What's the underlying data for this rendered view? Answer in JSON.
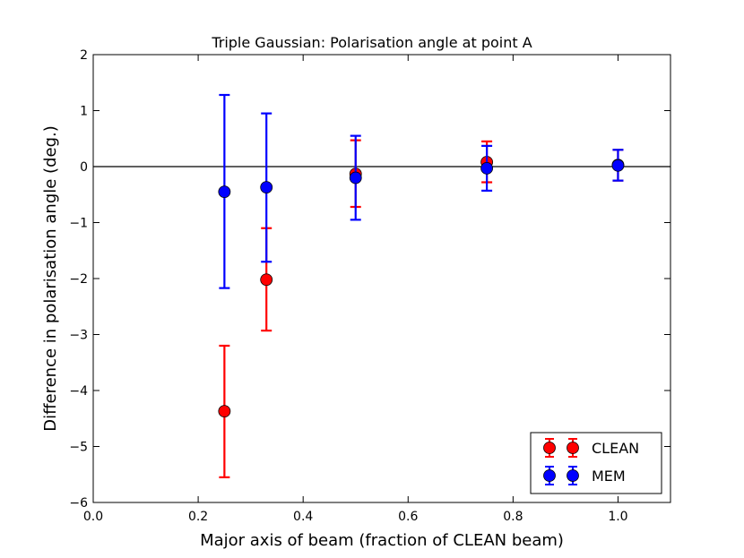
{
  "chart_data": {
    "type": "scatter",
    "title": "Triple Gaussian: Polarisation angle at point A",
    "xlabel": "Major axis of beam (fraction of CLEAN beam)",
    "ylabel": "Difference in polarisation angle (deg.)",
    "xlim": [
      0.0,
      1.1
    ],
    "ylim": [
      -6,
      2
    ],
    "xticks": [
      0.0,
      0.2,
      0.4,
      0.6,
      0.8,
      1.0
    ],
    "xtick_labels": [
      "0.0",
      "0.2",
      "0.4",
      "0.6",
      "0.8",
      "1.0"
    ],
    "yticks": [
      -6,
      -5,
      -4,
      -3,
      -2,
      -1,
      0,
      1,
      2
    ],
    "ytick_labels": [
      "−6",
      "−5",
      "−4",
      "−3",
      "−2",
      "−1",
      "0",
      "1",
      "2"
    ],
    "reference_line_y": 0,
    "grid": false,
    "legend_position": "bottom-right",
    "series": [
      {
        "name": "CLEAN",
        "color": "#ff0000",
        "x": [
          0.25,
          0.33,
          0.5,
          0.75,
          1.0
        ],
        "y": [
          -4.37,
          -2.02,
          -0.13,
          0.08,
          0.03
        ],
        "err_low": [
          -5.55,
          -2.93,
          -0.72,
          -0.28,
          -0.25
        ],
        "err_high": [
          -3.2,
          -1.1,
          0.47,
          0.45,
          0.3
        ]
      },
      {
        "name": "MEM",
        "color": "#0000ff",
        "x": [
          0.25,
          0.33,
          0.5,
          0.75,
          1.0
        ],
        "y": [
          -0.45,
          -0.37,
          -0.2,
          -0.03,
          0.02
        ],
        "err_low": [
          -2.17,
          -1.7,
          -0.95,
          -0.43,
          -0.25
        ],
        "err_high": [
          1.28,
          0.95,
          0.55,
          0.37,
          0.3
        ]
      }
    ]
  }
}
